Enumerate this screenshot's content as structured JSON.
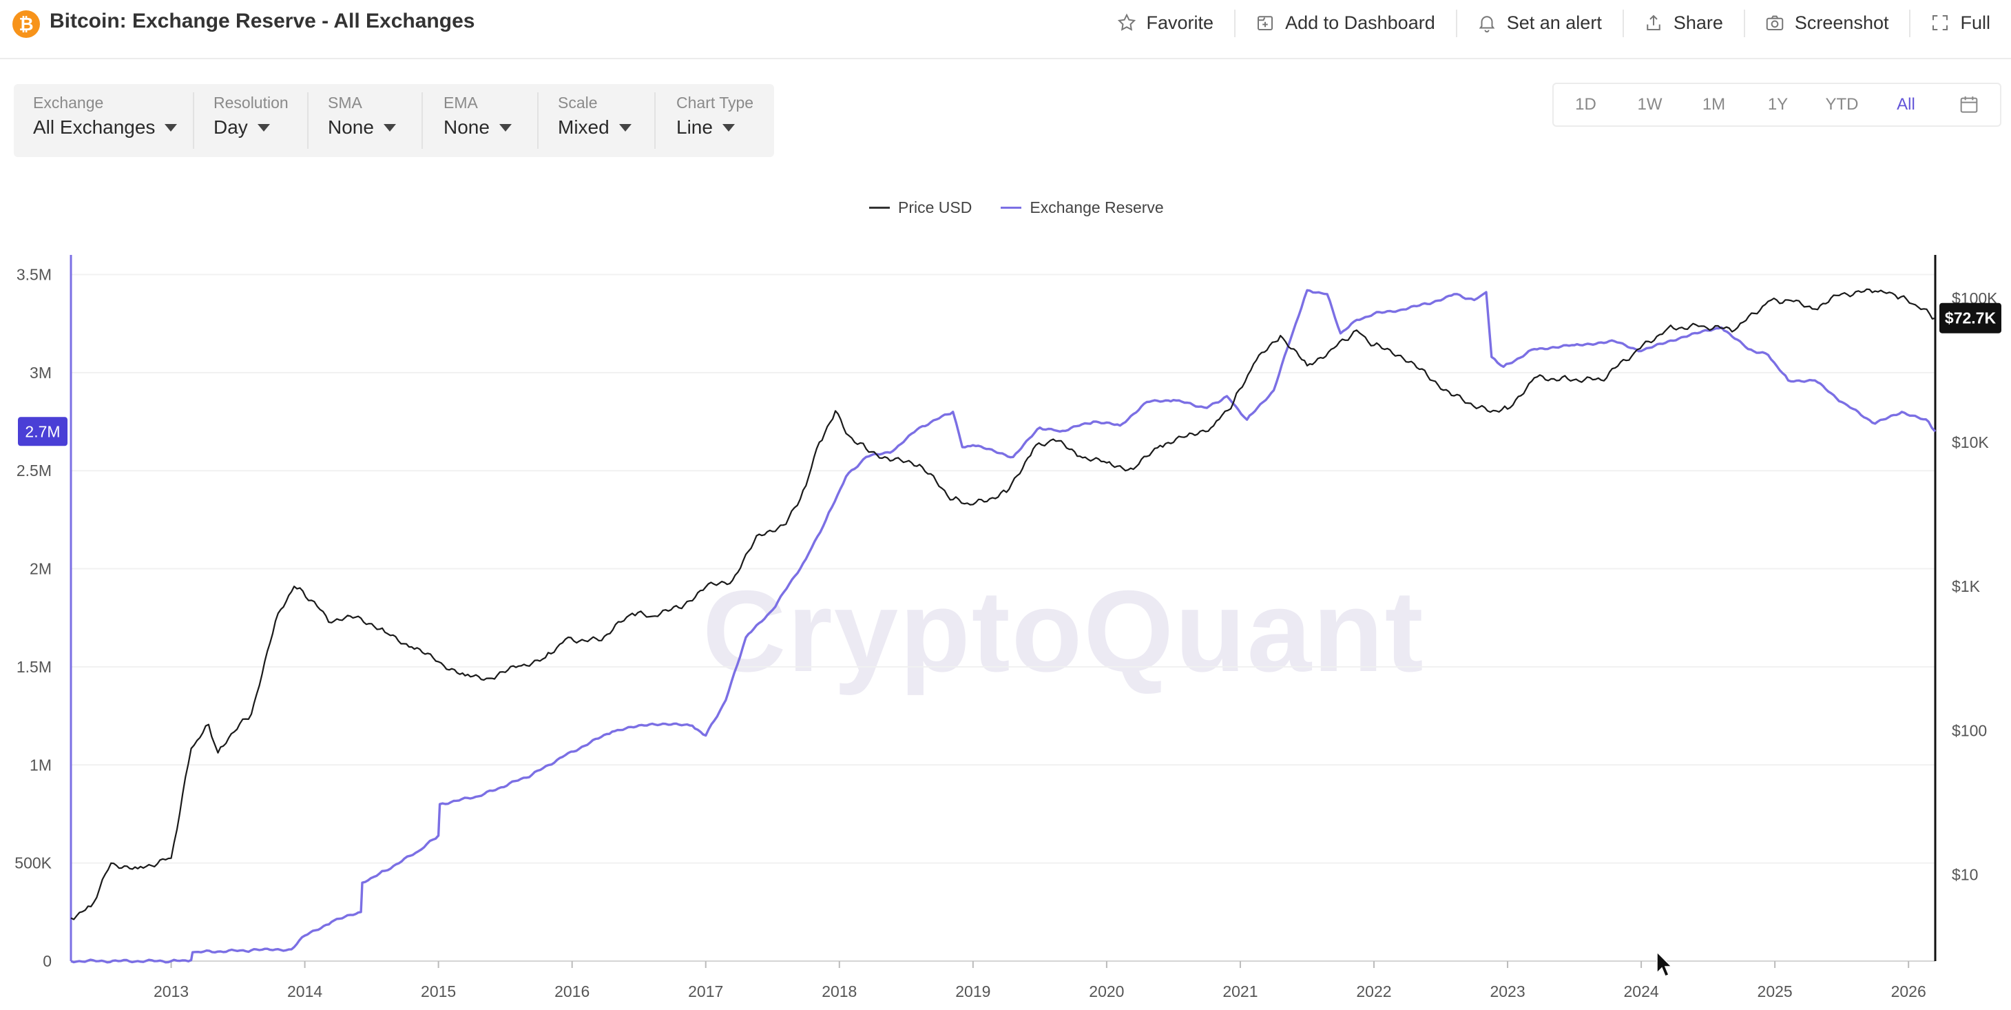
{
  "header": {
    "logo_glyph": "₿",
    "title": "Bitcoin: Exchange Reserve - All Exchanges",
    "actions": [
      {
        "label": "Favorite",
        "icon": "star-icon"
      },
      {
        "label": "Add to Dashboard",
        "icon": "dashboard-add-icon"
      },
      {
        "label": "Set an alert",
        "icon": "bell-icon"
      },
      {
        "label": "Share",
        "icon": "share-icon"
      },
      {
        "label": "Screenshot",
        "icon": "camera-icon"
      },
      {
        "label": "Full",
        "icon": "fullscreen-icon"
      }
    ]
  },
  "filters": [
    {
      "label": "Exchange",
      "value": "All Exchanges"
    },
    {
      "label": "Resolution",
      "value": "Day"
    },
    {
      "label": "SMA",
      "value": "None"
    },
    {
      "label": "EMA",
      "value": "None"
    },
    {
      "label": "Scale",
      "value": "Mixed"
    },
    {
      "label": "Chart Type",
      "value": "Line"
    }
  ],
  "ranges": [
    "1D",
    "1W",
    "1M",
    "1Y",
    "YTD",
    "All"
  ],
  "active_range": "All",
  "watermark": "CryptoQuant",
  "colors": {
    "price": "#1a1a1a",
    "reserve": "#7b6fe4",
    "reserve_badge": "#4a3fd6",
    "accent": "#6254d8"
  },
  "chart_data": {
    "type": "line",
    "legend": [
      "Price USD",
      "Exchange Reserve"
    ],
    "x_ticks": [
      "2013",
      "2014",
      "2015",
      "2016",
      "2017",
      "2018",
      "2019",
      "2020",
      "2021",
      "2022",
      "2023",
      "2024",
      "2025",
      "2026"
    ],
    "x_range": [
      2012.25,
      2026.2
    ],
    "left_axis": {
      "ticks": [
        "0",
        "500K",
        "1M",
        "1.5M",
        "2M",
        "2.5M",
        "3M",
        "3.5M"
      ],
      "range": [
        0,
        3600000
      ],
      "scale": "linear"
    },
    "right_axis": {
      "ticks": [
        "$10",
        "$100",
        "$1K",
        "$10K",
        "$100K"
      ],
      "range_log10": [
        0.4,
        5.3
      ],
      "scale": "log"
    },
    "current_reserve_label": "2.7M",
    "current_price_label": "$72.7K",
    "series": [
      {
        "name": "Price USD",
        "axis": "right",
        "x": [
          2012.25,
          2012.4,
          2012.55,
          2012.75,
          2013.0,
          2013.15,
          2013.28,
          2013.35,
          2013.45,
          2013.6,
          2013.8,
          2013.92,
          2014.05,
          2014.2,
          2014.4,
          2014.6,
          2014.8,
          2015.0,
          2015.2,
          2015.4,
          2015.6,
          2015.8,
          2015.95,
          2016.2,
          2016.45,
          2016.6,
          2016.8,
          2017.0,
          2017.2,
          2017.4,
          2017.6,
          2017.75,
          2017.85,
          2017.97,
          2018.05,
          2018.2,
          2018.4,
          2018.6,
          2018.85,
          2019.0,
          2019.25,
          2019.45,
          2019.6,
          2019.8,
          2020.0,
          2020.2,
          2020.4,
          2020.6,
          2020.8,
          2020.95,
          2021.1,
          2021.3,
          2021.5,
          2021.7,
          2021.87,
          2022.0,
          2022.2,
          2022.4,
          2022.6,
          2022.85,
          2023.0,
          2023.2,
          2023.45,
          2023.7,
          2023.95,
          2024.2,
          2024.45,
          2024.7,
          2024.95,
          2025.1,
          2025.3,
          2025.5,
          2025.75,
          2025.9,
          2026.05,
          2026.2
        ],
        "y": [
          5,
          6,
          12,
          11,
          13,
          75,
          110,
          70,
          95,
          130,
          650,
          1000,
          800,
          560,
          620,
          480,
          380,
          300,
          240,
          230,
          280,
          320,
          430,
          420,
          650,
          620,
          710,
          990,
          1100,
          2300,
          2700,
          5000,
          10000,
          16500,
          11500,
          9000,
          7500,
          7000,
          4000,
          3700,
          4500,
          9000,
          10500,
          8000,
          7200,
          6500,
          9500,
          11000,
          13000,
          19000,
          35000,
          55000,
          34000,
          45000,
          60000,
          47000,
          40000,
          29000,
          21000,
          16500,
          17000,
          28000,
          27500,
          27000,
          42000,
          62000,
          64000,
          60000,
          95000,
          97000,
          84000,
          107000,
          112000,
          105000,
          90000,
          72700
        ]
      },
      {
        "name": "Exchange Reserve",
        "axis": "left",
        "x": [
          2012.25,
          2013.0,
          2013.15,
          2013.16,
          2013.6,
          2013.9,
          2014.0,
          2014.2,
          2014.42,
          2014.43,
          2014.6,
          2014.85,
          2015.0,
          2015.01,
          2015.3,
          2015.7,
          2015.95,
          2016.3,
          2016.6,
          2016.9,
          2017.0,
          2017.15,
          2017.3,
          2017.5,
          2017.75,
          2017.9,
          2018.05,
          2018.2,
          2018.4,
          2018.6,
          2018.85,
          2018.92,
          2019.0,
          2019.3,
          2019.5,
          2019.65,
          2019.9,
          2020.1,
          2020.3,
          2020.5,
          2020.75,
          2020.9,
          2021.05,
          2021.25,
          2021.35,
          2021.5,
          2021.65,
          2021.75,
          2021.85,
          2022.0,
          2022.2,
          2022.4,
          2022.6,
          2022.75,
          2022.84,
          2022.88,
          2022.97,
          2023.2,
          2023.5,
          2023.8,
          2024.0,
          2024.3,
          2024.6,
          2024.8,
          2024.95,
          2025.1,
          2025.3,
          2025.5,
          2025.75,
          2025.95,
          2026.15,
          2026.2
        ],
        "y": [
          0,
          0,
          5000,
          45000,
          55000,
          60000,
          130000,
          200000,
          250000,
          400000,
          460000,
          560000,
          640000,
          800000,
          840000,
          950000,
          1050000,
          1170000,
          1210000,
          1200000,
          1150000,
          1330000,
          1650000,
          1790000,
          2050000,
          2250000,
          2470000,
          2570000,
          2600000,
          2720000,
          2800000,
          2620000,
          2630000,
          2570000,
          2720000,
          2700000,
          2750000,
          2730000,
          2850000,
          2860000,
          2820000,
          2880000,
          2760000,
          2910000,
          3120000,
          3420000,
          3400000,
          3200000,
          3260000,
          3300000,
          3320000,
          3350000,
          3400000,
          3370000,
          3410000,
          3080000,
          3030000,
          3120000,
          3140000,
          3160000,
          3110000,
          3180000,
          3230000,
          3120000,
          3090000,
          2960000,
          2960000,
          2850000,
          2740000,
          2800000,
          2750000,
          2700000
        ]
      }
    ]
  }
}
